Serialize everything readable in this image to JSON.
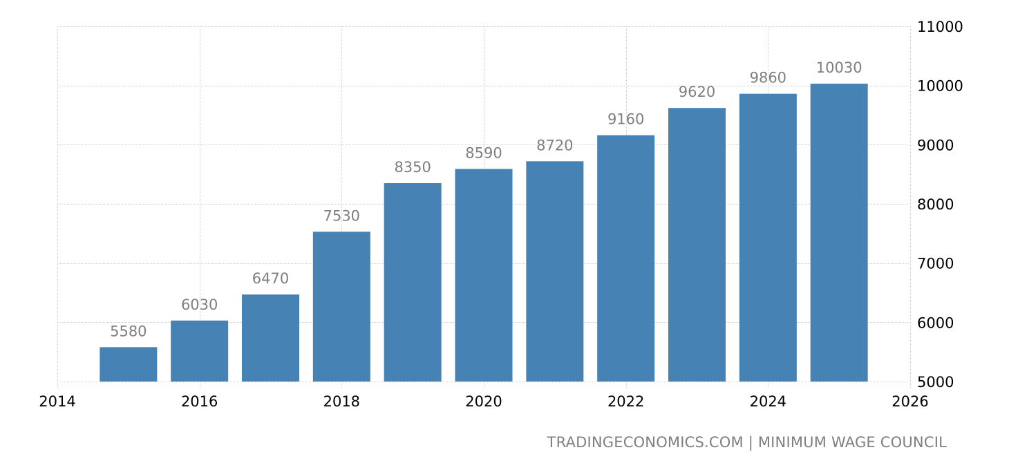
{
  "chart_data": {
    "type": "bar",
    "title": "",
    "xlabel": "",
    "ylabel": "",
    "categories": [
      "2015",
      "2016",
      "2017",
      "2018",
      "2019",
      "2020",
      "2021",
      "2022",
      "2023",
      "2024",
      "2025"
    ],
    "values": [
      5580,
      6030,
      6470,
      7530,
      8350,
      8590,
      8720,
      9160,
      9620,
      9860,
      10030
    ],
    "data_labels": [
      "5580",
      "6030",
      "6470",
      "7530",
      "8350",
      "8590",
      "8720",
      "9160",
      "9620",
      "9860",
      "10030"
    ],
    "x_ticks": [
      "2014",
      "2016",
      "2018",
      "2020",
      "2022",
      "2024",
      "2026"
    ],
    "xlim": [
      2014,
      2026
    ],
    "y_ticks": [
      "5000",
      "6000",
      "7000",
      "8000",
      "9000",
      "10000",
      "11000"
    ],
    "ylim": [
      5000,
      11000
    ],
    "y_axis_position": "right",
    "grid": true,
    "legend": null,
    "colors": {
      "bar": "#4682b4",
      "data_label": "#7f7f7f",
      "tick_label": "#000000",
      "grid": "#d0d0d0"
    }
  },
  "footer": {
    "source": "TRADINGECONOMICS.COM | MINIMUM WAGE COUNCIL"
  }
}
